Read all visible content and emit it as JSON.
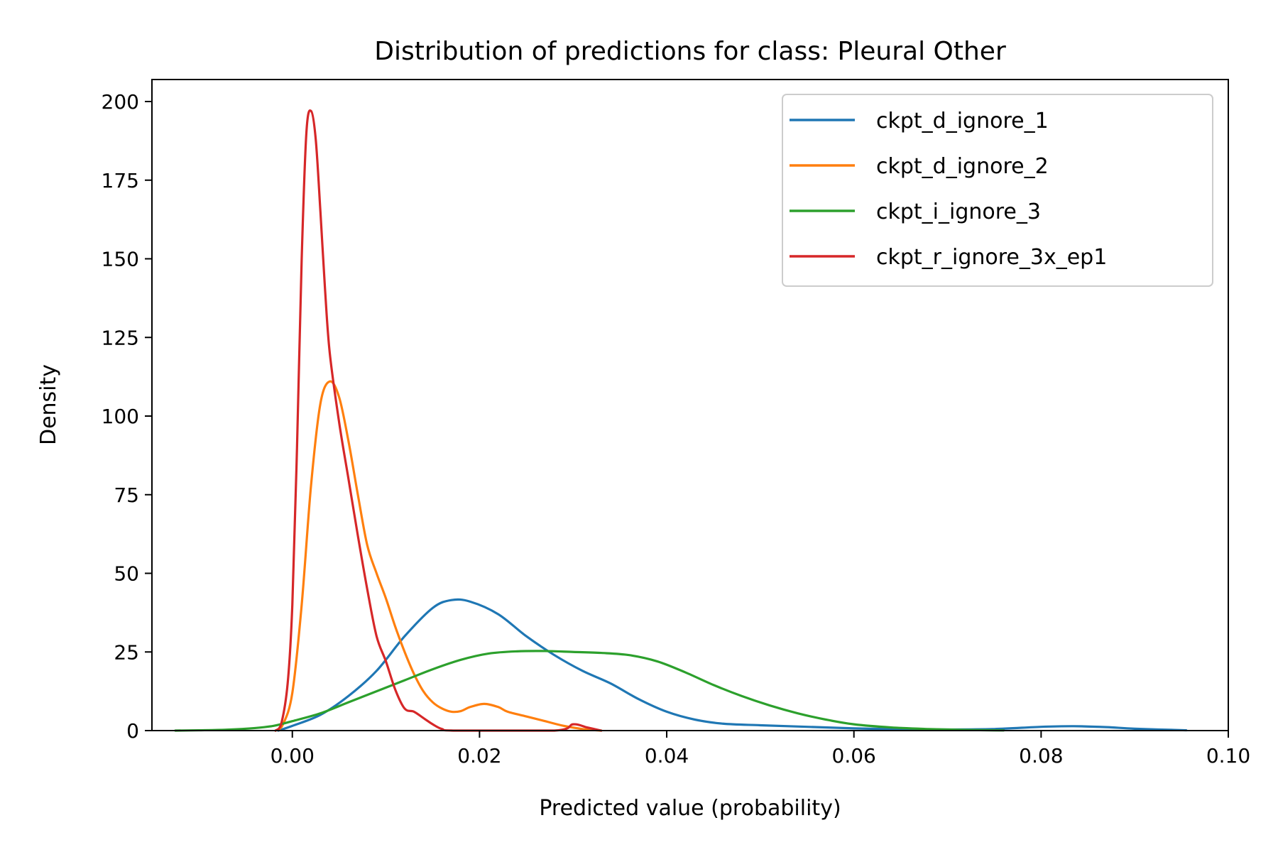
{
  "chart_data": {
    "type": "line",
    "title": "Distribution of predictions for class: Pleural Other",
    "xlabel": "Predicted value (probability)",
    "ylabel": "Density",
    "xlim": [
      -0.015,
      0.1
    ],
    "ylim": [
      0,
      207
    ],
    "xticks": [
      0.0,
      0.02,
      0.04,
      0.06,
      0.08,
      0.1
    ],
    "xtick_labels": [
      "0.00",
      "0.02",
      "0.04",
      "0.06",
      "0.08",
      "0.10"
    ],
    "yticks": [
      0,
      25,
      50,
      75,
      100,
      125,
      150,
      175,
      200
    ],
    "ytick_labels": [
      "0",
      "25",
      "50",
      "75",
      "100",
      "125",
      "150",
      "175",
      "200"
    ],
    "grid": false,
    "legend_position": "top-right",
    "series": [
      {
        "name": "ckpt_d_ignore_1",
        "color": "#1f77b4",
        "points": [
          [
            -0.0015,
            0
          ],
          [
            0.0,
            1.5
          ],
          [
            0.003,
            5
          ],
          [
            0.006,
            11
          ],
          [
            0.009,
            19
          ],
          [
            0.012,
            30
          ],
          [
            0.015,
            39
          ],
          [
            0.017,
            41.5
          ],
          [
            0.019,
            41
          ],
          [
            0.022,
            37
          ],
          [
            0.025,
            30
          ],
          [
            0.028,
            24
          ],
          [
            0.031,
            19
          ],
          [
            0.034,
            15
          ],
          [
            0.037,
            10
          ],
          [
            0.04,
            6
          ],
          [
            0.043,
            3.5
          ],
          [
            0.046,
            2.2
          ],
          [
            0.05,
            1.7
          ],
          [
            0.055,
            1.2
          ],
          [
            0.06,
            0.7
          ],
          [
            0.065,
            0.4
          ],
          [
            0.07,
            0.35
          ],
          [
            0.075,
            0.5
          ],
          [
            0.08,
            1.2
          ],
          [
            0.0835,
            1.4
          ],
          [
            0.087,
            1.1
          ],
          [
            0.09,
            0.6
          ],
          [
            0.0955,
            0.1
          ]
        ]
      },
      {
        "name": "ckpt_d_ignore_2",
        "color": "#ff7f0e",
        "points": [
          [
            -0.0018,
            0
          ],
          [
            -0.001,
            2
          ],
          [
            0.0,
            12
          ],
          [
            0.001,
            40
          ],
          [
            0.002,
            78
          ],
          [
            0.003,
            104
          ],
          [
            0.004,
            111
          ],
          [
            0.005,
            106
          ],
          [
            0.006,
            92
          ],
          [
            0.007,
            75
          ],
          [
            0.008,
            59
          ],
          [
            0.009,
            50
          ],
          [
            0.01,
            42
          ],
          [
            0.011,
            33
          ],
          [
            0.012,
            25
          ],
          [
            0.013,
            18
          ],
          [
            0.014,
            12.5
          ],
          [
            0.015,
            9
          ],
          [
            0.016,
            7
          ],
          [
            0.017,
            6
          ],
          [
            0.018,
            6.2
          ],
          [
            0.019,
            7.5
          ],
          [
            0.0205,
            8.5
          ],
          [
            0.022,
            7.5
          ],
          [
            0.023,
            6
          ],
          [
            0.025,
            4.5
          ],
          [
            0.027,
            3
          ],
          [
            0.029,
            1.5
          ],
          [
            0.031,
            0.5
          ],
          [
            0.033,
            0
          ]
        ]
      },
      {
        "name": "ckpt_i_ignore_3",
        "color": "#2ca02c",
        "points": [
          [
            -0.0125,
            0
          ],
          [
            -0.01,
            0.1
          ],
          [
            -0.007,
            0.3
          ],
          [
            -0.004,
            0.8
          ],
          [
            -0.002,
            1.5
          ],
          [
            0.0,
            3
          ],
          [
            0.003,
            5.5
          ],
          [
            0.006,
            9
          ],
          [
            0.009,
            12.5
          ],
          [
            0.012,
            16
          ],
          [
            0.015,
            19.5
          ],
          [
            0.018,
            22.5
          ],
          [
            0.021,
            24.5
          ],
          [
            0.024,
            25.2
          ],
          [
            0.027,
            25.3
          ],
          [
            0.03,
            25
          ],
          [
            0.033,
            24.7
          ],
          [
            0.036,
            24
          ],
          [
            0.039,
            22
          ],
          [
            0.042,
            18.5
          ],
          [
            0.045,
            14.5
          ],
          [
            0.048,
            11
          ],
          [
            0.051,
            8
          ],
          [
            0.054,
            5.5
          ],
          [
            0.057,
            3.5
          ],
          [
            0.06,
            2
          ],
          [
            0.064,
            1
          ],
          [
            0.068,
            0.5
          ],
          [
            0.072,
            0.2
          ],
          [
            0.076,
            0.05
          ]
        ]
      },
      {
        "name": "ckpt_r_ignore_3x_ep1",
        "color": "#d62728",
        "points": [
          [
            -0.0018,
            0
          ],
          [
            -0.0012,
            2
          ],
          [
            -0.0005,
            15
          ],
          [
            0.0,
            40
          ],
          [
            0.0005,
            90
          ],
          [
            0.001,
            150
          ],
          [
            0.0015,
            190
          ],
          [
            0.002,
            197
          ],
          [
            0.0025,
            188
          ],
          [
            0.003,
            165
          ],
          [
            0.0035,
            140
          ],
          [
            0.004,
            120
          ],
          [
            0.005,
            98
          ],
          [
            0.006,
            80
          ],
          [
            0.007,
            62
          ],
          [
            0.008,
            45
          ],
          [
            0.009,
            30
          ],
          [
            0.01,
            22
          ],
          [
            0.011,
            13
          ],
          [
            0.012,
            7
          ],
          [
            0.013,
            6
          ],
          [
            0.014,
            4
          ],
          [
            0.015,
            2
          ],
          [
            0.016,
            0.5
          ],
          [
            0.0175,
            0
          ],
          [
            0.028,
            0
          ],
          [
            0.03,
            2
          ],
          [
            0.0315,
            1
          ],
          [
            0.033,
            0
          ]
        ]
      }
    ]
  }
}
